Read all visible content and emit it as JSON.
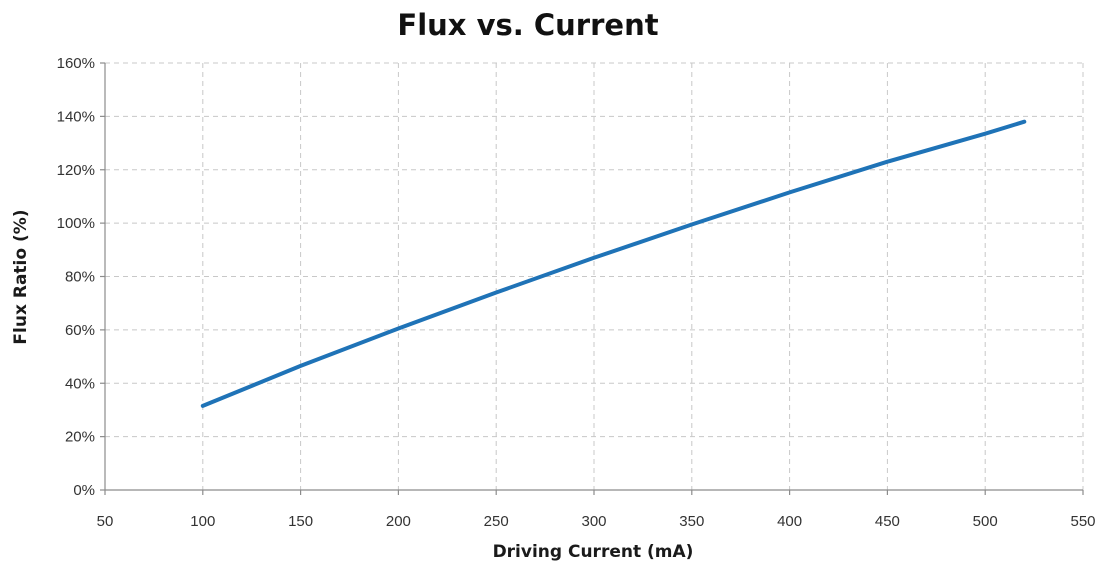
{
  "chart_data": {
    "type": "line",
    "title": "Flux vs. Current",
    "xlabel": "Driving Current (mA)",
    "ylabel": "Flux Ratio (%)",
    "xlim": [
      50,
      550
    ],
    "ylim": [
      0,
      160
    ],
    "x_ticks": [
      50,
      100,
      150,
      200,
      250,
      300,
      350,
      400,
      450,
      500,
      550
    ],
    "x_tick_labels": [
      "50",
      "100",
      "150",
      "200",
      "250",
      "300",
      "350",
      "400",
      "450",
      "500",
      "550"
    ],
    "y_ticks": [
      0,
      20,
      40,
      60,
      80,
      100,
      120,
      140,
      160
    ],
    "y_tick_labels": [
      "0%",
      "20%",
      "40%",
      "60%",
      "80%",
      "100%",
      "120%",
      "140%",
      "160%"
    ],
    "grid": true,
    "series": [
      {
        "color": "#1f73b7",
        "x": [
          100,
          150,
          200,
          250,
          300,
          350,
          400,
          450,
          500,
          520
        ],
        "y": [
          31.5,
          46.5,
          60.5,
          74,
          87,
          99.5,
          111.5,
          123,
          133.5,
          138
        ]
      }
    ]
  }
}
